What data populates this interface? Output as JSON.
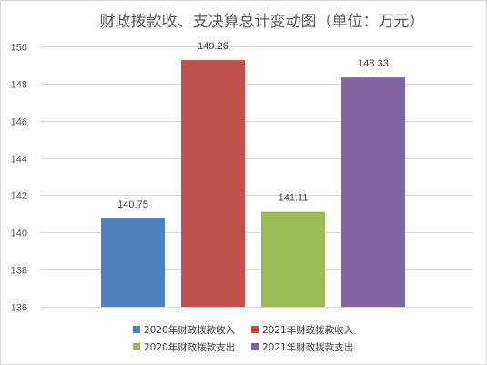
{
  "chart_data": {
    "type": "bar",
    "title": "财政拨款收、支决算总计变动图（单位：万元）",
    "xlabel": "",
    "ylabel": "",
    "ylim": [
      136,
      150
    ],
    "yticks": [
      136,
      138,
      140,
      142,
      144,
      146,
      148,
      150
    ],
    "grid": true,
    "legend_position": "bottom",
    "series": [
      {
        "name": "2020年财政拨款收入",
        "value": 140.75,
        "value_label": "140.75",
        "color": "#4f81bd"
      },
      {
        "name": "2021年财政拨款收入",
        "value": 149.26,
        "value_label": "149.26",
        "color": "#c0504d"
      },
      {
        "name": "2020年财政拨款支出",
        "value": 141.11,
        "value_label": "141.11",
        "color": "#9bbb59"
      },
      {
        "name": "2021年财政拨款支出",
        "value": 148.33,
        "value_label": "148.33",
        "color": "#8064a2"
      }
    ]
  }
}
